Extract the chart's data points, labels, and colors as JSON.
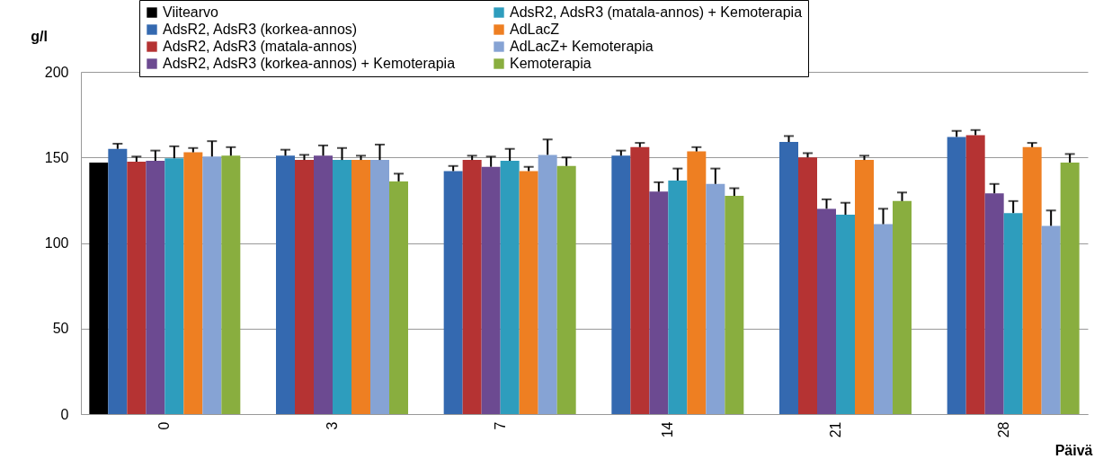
{
  "chart_data": {
    "type": "bar",
    "ylabel": "g/l",
    "xlabel": "Päivä",
    "categories": [
      "0",
      "3",
      "7",
      "14",
      "21",
      "28"
    ],
    "ylim": [
      0,
      200
    ],
    "yticks": [
      0,
      50,
      100,
      150,
      200
    ],
    "grid": "y",
    "legend": "top",
    "series": [
      {
        "name": "Viitearvo",
        "color": "#000000",
        "values": [
          147,
          null,
          null,
          null,
          null,
          null
        ]
      },
      {
        "name": "AdsR2, AdsR3 (korkea-annos)",
        "color": "#3469b0",
        "values": [
          155,
          151,
          142,
          151,
          159,
          162
        ],
        "errors": [
          [
            155,
            158
          ],
          [
            151,
            154.5
          ],
          [
            142,
            145
          ],
          [
            151,
            154
          ],
          [
            159,
            162.5
          ],
          [
            162,
            165.5
          ]
        ]
      },
      {
        "name": "AdsR2, AdsR3 (matala-annos)",
        "color": "#b53333",
        "values": [
          147.5,
          148.5,
          148.5,
          156,
          150,
          163
        ],
        "errors": [
          [
            147.5,
            150.5
          ],
          [
            148.5,
            151.5
          ],
          [
            148.5,
            151
          ],
          [
            156,
            158.5
          ],
          [
            150,
            152.5
          ],
          [
            163,
            166
          ]
        ]
      },
      {
        "name": "AdsR2, AdsR3 (korkea-annos) + Kemoterapia",
        "color": "#6c4a91",
        "values": [
          148,
          151,
          144.5,
          130,
          120,
          129
        ],
        "errors": [
          [
            148,
            154
          ],
          [
            151,
            157
          ],
          [
            144.5,
            150.5
          ],
          [
            130,
            135.5
          ],
          [
            120,
            125.5
          ],
          [
            129,
            134.5
          ]
        ]
      },
      {
        "name": "AdsR2, AdsR3 (matala-annos) + Kemoterapia",
        "color": "#2e9dbd",
        "values": [
          149.5,
          148.5,
          148,
          136.5,
          116.5,
          117.5
        ],
        "errors": [
          [
            149.5,
            156.5
          ],
          [
            148.5,
            155.5
          ],
          [
            148,
            155
          ],
          [
            136.5,
            143.5
          ],
          [
            116.5,
            123.5
          ],
          [
            117.5,
            124.5
          ]
        ]
      },
      {
        "name": "AdLacZ",
        "color": "#ee7f22",
        "values": [
          153,
          148.5,
          142,
          153.5,
          148.5,
          156
        ],
        "errors": [
          [
            153,
            155.5
          ],
          [
            148.5,
            151
          ],
          [
            142,
            144.5
          ],
          [
            153.5,
            156
          ],
          [
            148.5,
            151
          ],
          [
            156,
            158.5
          ]
        ]
      },
      {
        "name": "AdLacZ+ Kemoterapia",
        "color": "#86a3d4",
        "values": [
          150.5,
          148.5,
          151.5,
          134.5,
          111,
          110
        ],
        "errors": [
          [
            150.5,
            159.5
          ],
          [
            148.5,
            157.5
          ],
          [
            151.5,
            160.5
          ],
          [
            134.5,
            143.5
          ],
          [
            111,
            120
          ],
          [
            110,
            119
          ]
        ]
      },
      {
        "name": "Kemoterapia",
        "color": "#89ae3f",
        "values": [
          151,
          136,
          145,
          127.5,
          124.5,
          147
        ],
        "errors": [
          [
            151,
            156
          ],
          [
            136,
            140.5
          ],
          [
            145,
            150
          ],
          [
            127.5,
            132
          ],
          [
            124.5,
            129.5
          ],
          [
            147,
            152
          ]
        ]
      }
    ]
  }
}
